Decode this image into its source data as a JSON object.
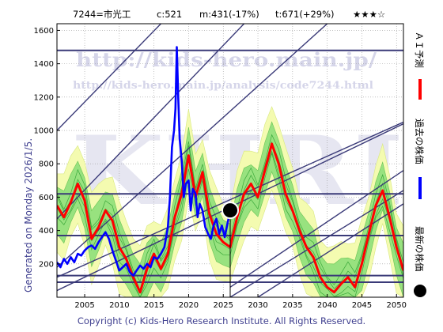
{
  "header": {
    "code": "7244=市光工",
    "current": "c:521",
    "min": "m:431(-17%)",
    "target": "t:671(+29%)",
    "rating": "★★★☆"
  },
  "side_note": "Generated on Monday 2026/1/5.",
  "footer": "Copyright (c) Kids-Hero Research Institute. All Rights Reserved.",
  "watermark": {
    "logo": "KHRI",
    "url_main": "http://kids-hero.main.jp/",
    "url_sub": "http://kids-hero.main.jp/analysis/code7244.html"
  },
  "legend": {
    "forecast": "ＡＩ予測",
    "past": "過去の株価",
    "latest": "最新の株価"
  },
  "colors": {
    "forecast": "#ff0000",
    "past": "#0000ff",
    "latest": "#000000",
    "band_outer": "#f4fbb0",
    "band_inner": "#8fe07a",
    "trend": "#3a3a78",
    "text_blue": "#404090"
  },
  "chart_data": {
    "type": "line",
    "xlim": [
      2001,
      2051
    ],
    "ylim": [
      0,
      1640
    ],
    "x_ticks": [
      2005,
      2010,
      2015,
      2020,
      2025,
      2030,
      2035,
      2040,
      2045,
      2050
    ],
    "y_ticks": [
      200,
      400,
      600,
      800,
      1000,
      1200,
      1400,
      1600
    ],
    "grid": true,
    "latest": {
      "x": 2026.0,
      "y": 521
    },
    "series": [
      {
        "key": "past",
        "x": [
          2001.0,
          2001.5,
          2002.0,
          2002.5,
          2003.0,
          2003.5,
          2004.0,
          2004.5,
          2005.0,
          2005.5,
          2006.0,
          2006.5,
          2007.0,
          2007.5,
          2008.0,
          2008.5,
          2009.0,
          2009.5,
          2010.0,
          2010.5,
          2011.0,
          2011.5,
          2012.0,
          2012.5,
          2013.0,
          2013.5,
          2014.0,
          2014.5,
          2015.0,
          2015.5,
          2016.0,
          2016.5,
          2017.0,
          2017.3,
          2017.6,
          2017.9,
          2018.1,
          2018.3,
          2018.5,
          2018.7,
          2019.0,
          2019.3,
          2019.6,
          2020.0,
          2020.3,
          2020.6,
          2021.0,
          2021.3,
          2021.6,
          2022.0,
          2022.4,
          2022.8,
          2023.2,
          2023.6,
          2024.0,
          2024.4,
          2024.8,
          2025.2,
          2025.6,
          2026.0
        ],
        "y": [
          210,
          180,
          230,
          200,
          240,
          210,
          260,
          250,
          280,
          300,
          310,
          290,
          330,
          360,
          390,
          350,
          280,
          220,
          160,
          180,
          200,
          150,
          130,
          160,
          190,
          170,
          200,
          180,
          240,
          230,
          260,
          300,
          420,
          600,
          900,
          1000,
          1130,
          1500,
          1200,
          950,
          820,
          600,
          680,
          700,
          520,
          650,
          620,
          480,
          560,
          520,
          420,
          380,
          350,
          430,
          470,
          380,
          430,
          360,
          440,
          521
        ]
      },
      {
        "key": "forecast",
        "x": [
          2001.0,
          2002.0,
          2003.0,
          2004.0,
          2005.0,
          2006.0,
          2007.0,
          2008.0,
          2009.0,
          2010.0,
          2011.0,
          2012.0,
          2013.0,
          2014.0,
          2015.0,
          2016.0,
          2017.0,
          2018.0,
          2019.0,
          2020.0,
          2021.0,
          2022.0,
          2023.0,
          2024.0,
          2025.0,
          2026.0,
          2027.0,
          2028.0,
          2029.0,
          2030.0,
          2031.0,
          2032.0,
          2033.0,
          2034.0,
          2035.0,
          2036.0,
          2037.0,
          2038.0,
          2039.0,
          2040.0,
          2041.0,
          2042.0,
          2043.0,
          2044.0,
          2045.0,
          2046.0,
          2047.0,
          2048.0,
          2049.0,
          2050.0,
          2051.0
        ],
        "y": [
          550,
          480,
          570,
          680,
          580,
          350,
          420,
          520,
          460,
          300,
          230,
          120,
          30,
          170,
          260,
          170,
          260,
          480,
          620,
          850,
          600,
          750,
          500,
          380,
          330,
          300,
          480,
          620,
          680,
          600,
          760,
          920,
          800,
          620,
          520,
          400,
          300,
          240,
          120,
          60,
          30,
          80,
          120,
          60,
          200,
          380,
          550,
          640,
          480,
          300,
          160
        ]
      }
    ],
    "trend_lines": [
      {
        "x1": 2001,
        "y1": 40,
        "x2": 2051,
        "y2": 1040
      },
      {
        "x1": 2001,
        "y1": 120,
        "x2": 2051,
        "y2": 1050
      },
      {
        "x1": 2001,
        "y1": 180,
        "x2": 2040,
        "y2": 1640
      },
      {
        "x1": 2001,
        "y1": 470,
        "x2": 2028,
        "y2": 1640
      },
      {
        "x1": 2001,
        "y1": 1000,
        "x2": 2016,
        "y2": 1640
      },
      {
        "x1": 2001,
        "y1": 1480,
        "x2": 2051,
        "y2": 1480
      },
      {
        "x1": 2001,
        "y1": 620,
        "x2": 2051,
        "y2": 620
      },
      {
        "x1": 2001,
        "y1": 370,
        "x2": 2051,
        "y2": 370
      },
      {
        "x1": 2001,
        "y1": 130,
        "x2": 2051,
        "y2": 130
      },
      {
        "x1": 2001,
        "y1": 90,
        "x2": 2051,
        "y2": 90
      },
      {
        "x1": 2026,
        "y1": 0,
        "x2": 2051,
        "y2": 640
      },
      {
        "x1": 2026,
        "y1": 60,
        "x2": 2051,
        "y2": 760
      },
      {
        "x1": 2030,
        "y1": 0,
        "x2": 2051,
        "y2": 560
      }
    ]
  }
}
